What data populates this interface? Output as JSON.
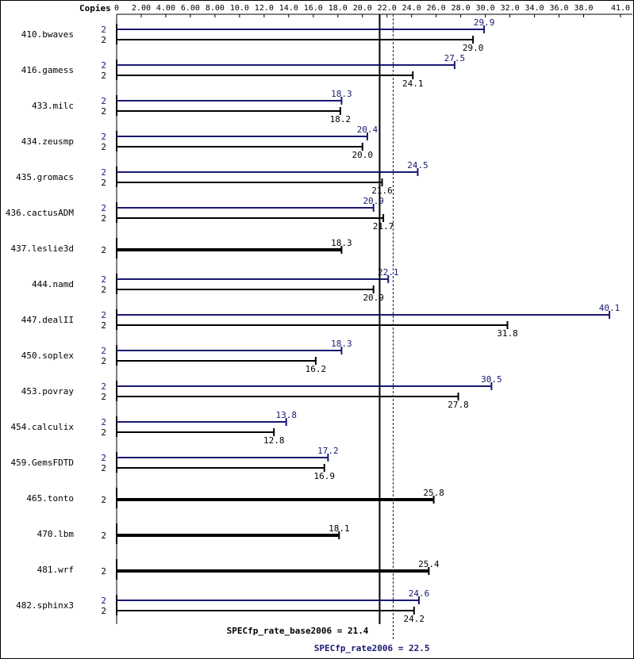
{
  "chart_data": {
    "type": "bar",
    "orientation": "horizontal",
    "title": "",
    "copies_label": "Copies",
    "xlim": [
      0,
      41.0
    ],
    "x_ticks": [
      "0",
      "2.00",
      "4.00",
      "6.00",
      "8.00",
      "10.0",
      "12.0",
      "14.0",
      "16.0",
      "18.0",
      "20.0",
      "22.0",
      "24.0",
      "26.0",
      "28.0",
      "30.0",
      "32.0",
      "34.0",
      "36.0",
      "38.0",
      "41.0"
    ],
    "x_tick_values": [
      0,
      2,
      4,
      6,
      8,
      10,
      12,
      14,
      16,
      18,
      20,
      22,
      24,
      26,
      28,
      30,
      32,
      34,
      36,
      38,
      41
    ],
    "grid": false,
    "colors": {
      "base": "#000000",
      "peak": "#191970",
      "frame": "#000000"
    },
    "series": [
      {
        "name": "base",
        "color": "#000000"
      },
      {
        "name": "peak",
        "color": "#191970"
      }
    ],
    "benchmarks": [
      {
        "name": "410.bwaves",
        "peak": {
          "copies": "2",
          "value": 29.9,
          "label": "29.9"
        },
        "base": {
          "copies": "2",
          "value": 29.0,
          "label": "29.0"
        }
      },
      {
        "name": "416.gamess",
        "peak": {
          "copies": "2",
          "value": 27.5,
          "label": "27.5"
        },
        "base": {
          "copies": "2",
          "value": 24.1,
          "label": "24.1"
        }
      },
      {
        "name": "433.milc",
        "peak": {
          "copies": "2",
          "value": 18.3,
          "label": "18.3"
        },
        "base": {
          "copies": "2",
          "value": 18.2,
          "label": "18.2"
        }
      },
      {
        "name": "434.zeusmp",
        "peak": {
          "copies": "2",
          "value": 20.4,
          "label": "20.4"
        },
        "base": {
          "copies": "2",
          "value": 20.0,
          "label": "20.0"
        }
      },
      {
        "name": "435.gromacs",
        "peak": {
          "copies": "2",
          "value": 24.5,
          "label": "24.5"
        },
        "base": {
          "copies": "2",
          "value": 21.6,
          "label": "21.6"
        }
      },
      {
        "name": "436.cactusADM",
        "peak": {
          "copies": "2",
          "value": 20.9,
          "label": "20.9"
        },
        "base": {
          "copies": "2",
          "value": 21.7,
          "label": "21.7"
        }
      },
      {
        "name": "437.leslie3d",
        "single": {
          "copies": "2",
          "value": 18.3,
          "label": "18.3"
        }
      },
      {
        "name": "444.namd",
        "peak": {
          "copies": "2",
          "value": 22.1,
          "label": "22.1"
        },
        "base": {
          "copies": "2",
          "value": 20.9,
          "label": "20.9"
        }
      },
      {
        "name": "447.dealII",
        "peak": {
          "copies": "2",
          "value": 40.1,
          "label": "40.1"
        },
        "base": {
          "copies": "2",
          "value": 31.8,
          "label": "31.8"
        }
      },
      {
        "name": "450.soplex",
        "peak": {
          "copies": "2",
          "value": 18.3,
          "label": "18.3"
        },
        "base": {
          "copies": "2",
          "value": 16.2,
          "label": "16.2"
        }
      },
      {
        "name": "453.povray",
        "peak": {
          "copies": "2",
          "value": 30.5,
          "label": "30.5"
        },
        "base": {
          "copies": "2",
          "value": 27.8,
          "label": "27.8"
        }
      },
      {
        "name": "454.calculix",
        "peak": {
          "copies": "2",
          "value": 13.8,
          "label": "13.8"
        },
        "base": {
          "copies": "2",
          "value": 12.8,
          "label": "12.8"
        }
      },
      {
        "name": "459.GemsFDTD",
        "peak": {
          "copies": "2",
          "value": 17.2,
          "label": "17.2"
        },
        "base": {
          "copies": "2",
          "value": 16.9,
          "label": "16.9"
        }
      },
      {
        "name": "465.tonto",
        "single": {
          "copies": "2",
          "value": 25.8,
          "label": "25.8"
        }
      },
      {
        "name": "470.lbm",
        "single": {
          "copies": "2",
          "value": 18.1,
          "label": "18.1"
        }
      },
      {
        "name": "481.wrf",
        "single": {
          "copies": "2",
          "value": 25.4,
          "label": "25.4"
        }
      },
      {
        "name": "482.sphinx3",
        "peak": {
          "copies": "2",
          "value": 24.6,
          "label": "24.6"
        },
        "base": {
          "copies": "2",
          "value": 24.2,
          "label": "24.2"
        }
      }
    ],
    "summary": {
      "base": {
        "label": "SPECfp_rate_base2006 = 21.4",
        "value": 21.4
      },
      "peak": {
        "label": "SPECfp_rate2006 = 22.5",
        "value": 22.5
      }
    }
  }
}
